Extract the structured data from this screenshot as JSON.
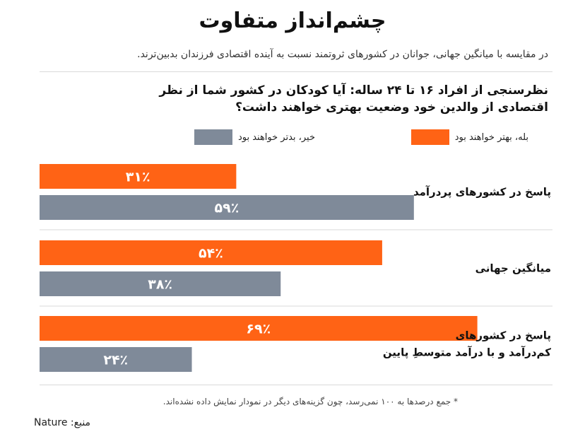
{
  "header": {
    "title": "چشم‌انداز متفاوت",
    "subtitle": "در مقایسه با میانگین جهانی، جوانان در کشورهای ثروتمند نسبت به آینده اقتصادی فرزندان بدبین‌ترند."
  },
  "chart_data": {
    "type": "bar",
    "orientation": "horizontal",
    "question": "نظرسنجی از افراد ۱۶ تا ۲۴ ساله: آیا کودکان در کشور شما از نظر اقتصادی از والدین خود وضعیت بهتری خواهند داشت؟",
    "categories": [
      "پاسخ در کشورهای پردرآمد",
      "میانگین جهانی",
      "پاسخ در کشورهای کم‌درآمد و با درآمد متوسطِ پایین"
    ],
    "series": [
      {
        "name": "بله، بهتر خواهند بود",
        "color": "#ff6315",
        "values": [
          31,
          54,
          69
        ],
        "labels": [
          "۳۱٪",
          "۵۴٪",
          "۶۹٪"
        ]
      },
      {
        "name": "خیر، بدتر خواهند بود",
        "color": "#7f8a99",
        "values": [
          59,
          38,
          24
        ],
        "labels": [
          "۵۹٪",
          "۳۸٪",
          "۲۴٪"
        ]
      }
    ],
    "xlim": [
      0,
      100
    ],
    "grid": false,
    "legend_position": "top-right"
  },
  "footer": {
    "note": "* جمع درصدها به ۱۰۰ نمی‌رسد، چون گزینه‌های دیگر در نمودار نمایش داده نشده‌اند.",
    "source": "منبع: Nature"
  }
}
